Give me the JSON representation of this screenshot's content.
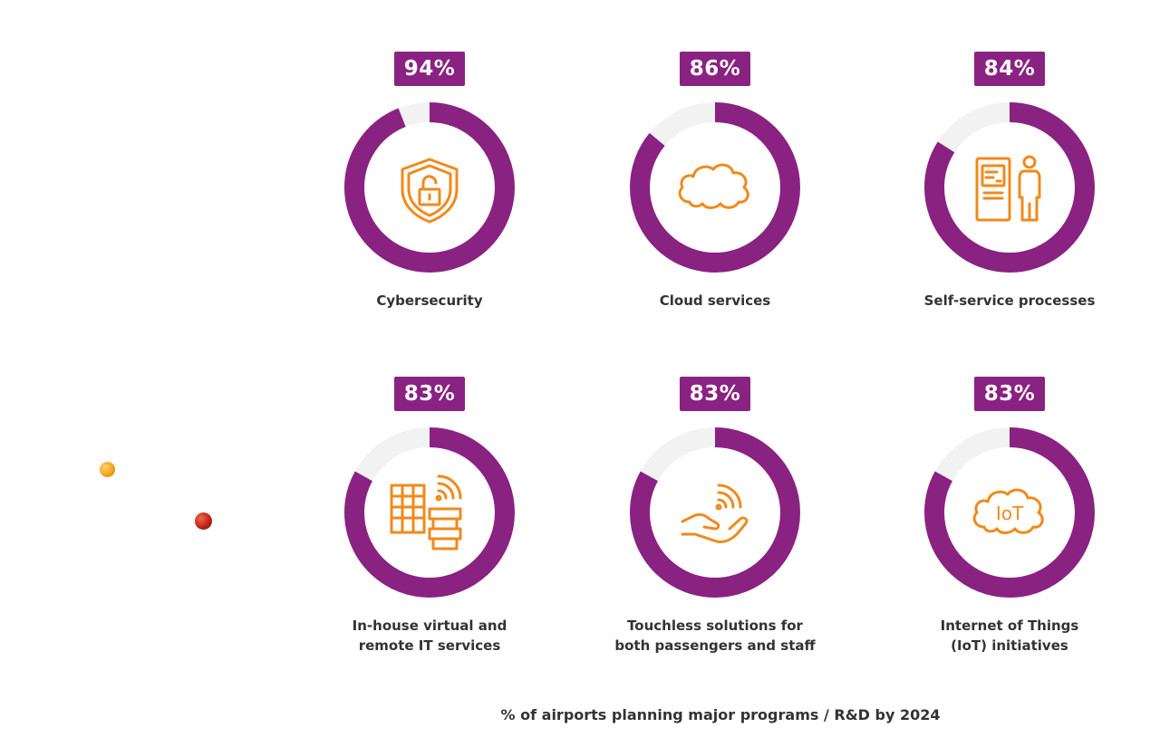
{
  "chart_data": {
    "type": "donut",
    "title": "",
    "footnote": "% of airports planning major programs / R&D by 2024",
    "colors": {
      "ring": "#8a2282",
      "track": "#f2f2f2",
      "icon": "#f08a1c",
      "badge": "#8a2282"
    },
    "items": [
      {
        "category": "Cybersecurity",
        "value": 94,
        "label_text": "94%",
        "icon": "shield-lock-icon"
      },
      {
        "category": "Cloud services",
        "value": 86,
        "label_text": "86%",
        "icon": "cloud-icon"
      },
      {
        "category": "Self-service processes",
        "value": 84,
        "label_text": "84%",
        "icon": "kiosk-person-icon"
      },
      {
        "category": "In-house virtual and remote IT services",
        "value": 83,
        "label_text": "83%",
        "icon": "building-servers-wifi-icon",
        "lines": [
          "In-house virtual and",
          "remote IT services"
        ]
      },
      {
        "category": "Touchless solutions for both passengers and staff",
        "value": 83,
        "label_text": "83%",
        "icon": "hand-wireless-icon",
        "lines": [
          "Touchless solutions for",
          "both passengers and staff"
        ]
      },
      {
        "category": "Internet of Things (IoT) initiatives",
        "value": 83,
        "label_text": "83%",
        "icon": "iot-cloud-icon",
        "lines": [
          "Internet of Things",
          "(IoT) initiatives"
        ],
        "icon_text": "IoT"
      }
    ]
  }
}
